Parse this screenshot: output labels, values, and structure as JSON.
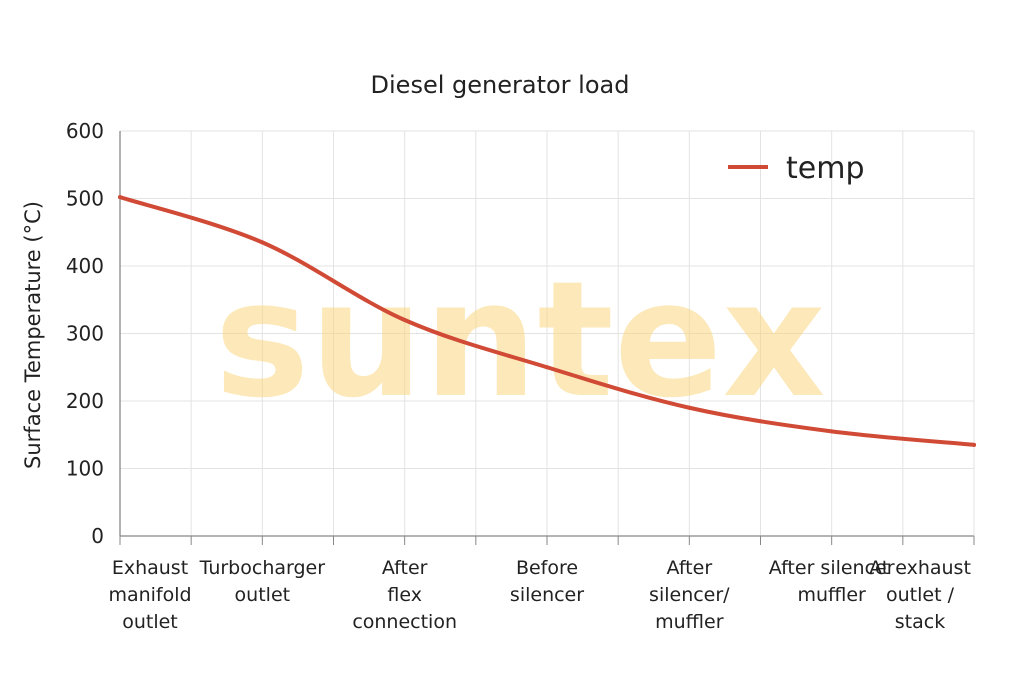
{
  "chart_data": {
    "type": "line",
    "title": "Diesel generator load",
    "xlabel": "",
    "ylabel": "Surface Temperature (°C)",
    "ylim": [
      0,
      600
    ],
    "yticks": [
      0,
      100,
      200,
      300,
      400,
      500,
      600
    ],
    "categories": [
      "Exhaust manifold outlet",
      "Turbocharger outlet",
      "After flex connection",
      "Before silencer",
      "After silencer/ muffler",
      "After silencer muffler",
      "At exhaust outlet / stack"
    ],
    "category_labels": [
      [
        "Exhaust",
        "manifold",
        "outlet"
      ],
      [
        "Turbocharger",
        "outlet"
      ],
      [
        "After",
        "flex",
        "connection"
      ],
      [
        "Before",
        "silencer"
      ],
      [
        "After",
        "silencer/",
        "muffler"
      ],
      [
        "After silencer",
        "muffler"
      ],
      [
        "At exhaust",
        "outlet /",
        "stack"
      ]
    ],
    "series": [
      {
        "name": "temp",
        "color": "#d04a35",
        "values": [
          502,
          435,
          320,
          250,
          190,
          155,
          135
        ]
      }
    ],
    "grid": true,
    "legend_position": "top-right"
  },
  "watermark": "suntex"
}
